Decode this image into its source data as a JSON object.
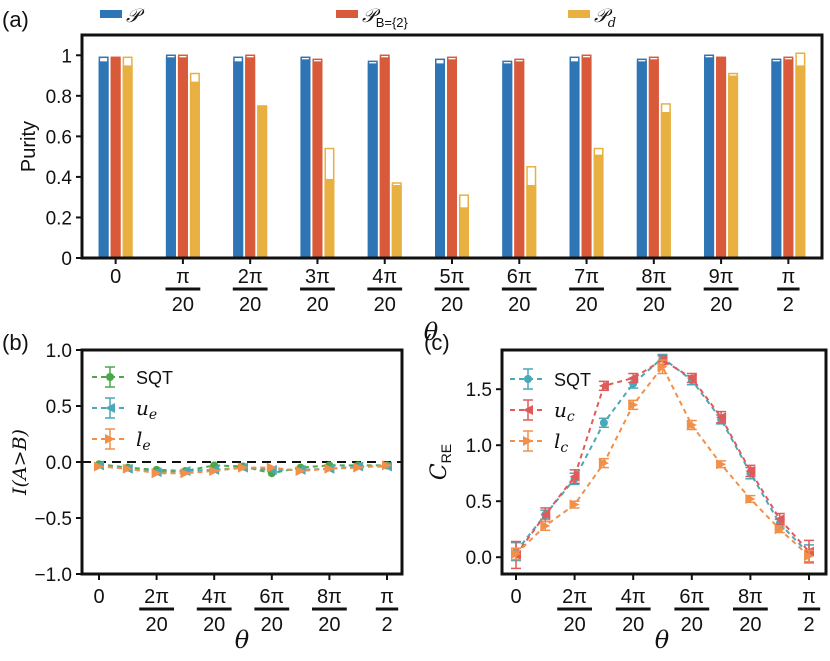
{
  "panels": {
    "a": "(a)",
    "b": "(b)",
    "c": "(c)"
  },
  "theta_symbol": "θ",
  "colors": {
    "blue": "#2e75b6",
    "red": "#d95a3a",
    "gold": "#e8b040",
    "green": "#4aa84a",
    "teal": "#4aa9b8",
    "pink": "#e05a5a",
    "orange": "#f0904a"
  },
  "chart_data": [
    {
      "id": "a",
      "type": "bar",
      "ylabel": "Purity",
      "xlabel": "θ",
      "ylim": [
        0,
        1.1
      ],
      "yticks": [
        "0",
        "0.2",
        "0.4",
        "0.6",
        "0.8",
        "1"
      ],
      "ytick_values": [
        0,
        0.2,
        0.4,
        0.6,
        0.8,
        1.0
      ],
      "categories": [
        {
          "num": "0",
          "den": ""
        },
        {
          "num": "π",
          "den": "20"
        },
        {
          "num": "2π",
          "den": "20"
        },
        {
          "num": "3π",
          "den": "20"
        },
        {
          "num": "4π",
          "den": "20"
        },
        {
          "num": "5π",
          "den": "20"
        },
        {
          "num": "6π",
          "den": "20"
        },
        {
          "num": "7π",
          "den": "20"
        },
        {
          "num": "8π",
          "den": "20"
        },
        {
          "num": "9π",
          "den": "20"
        },
        {
          "num": "π",
          "den": "2"
        }
      ],
      "series": [
        {
          "name": "𝒫",
          "sub": "",
          "color": "#2e75b6",
          "values": [
            0.97,
            0.99,
            0.97,
            0.98,
            0.96,
            0.96,
            0.96,
            0.97,
            0.97,
            0.99,
            0.97
          ],
          "theory": [
            0.99,
            1.0,
            0.99,
            0.99,
            0.97,
            0.98,
            0.97,
            0.99,
            0.98,
            1.0,
            0.98
          ]
        },
        {
          "name": "𝒫",
          "sub": "B={2}",
          "color": "#d95a3a",
          "values": [
            0.99,
            0.99,
            0.99,
            0.97,
            0.99,
            0.98,
            0.97,
            0.99,
            0.98,
            0.99,
            0.98
          ],
          "theory": [
            0.99,
            1.0,
            1.0,
            0.98,
            1.0,
            0.99,
            0.98,
            1.0,
            0.99,
            0.99,
            0.99
          ]
        },
        {
          "name": "𝒫",
          "sub": "d",
          "color": "#e8b040",
          "values": [
            0.95,
            0.87,
            0.75,
            0.39,
            0.36,
            0.25,
            0.36,
            0.51,
            0.72,
            0.9,
            0.95
          ],
          "theory": [
            0.99,
            0.91,
            0.75,
            0.54,
            0.37,
            0.31,
            0.45,
            0.54,
            0.76,
            0.91,
            1.01
          ]
        }
      ]
    },
    {
      "id": "b",
      "type": "line",
      "ylabel": "I(A>B)",
      "xlabel": "θ",
      "ylim": [
        -1.0,
        1.0
      ],
      "yticks": [
        "1.0",
        "0.5",
        "0.0",
        "−0.5",
        "−1.0"
      ],
      "ytick_values": [
        1.0,
        0.5,
        0.0,
        -0.5,
        -1.0
      ],
      "xticks": [
        {
          "num": "0",
          "den": "",
          "pos": 0
        },
        {
          "num": "2π",
          "den": "20",
          "pos": 2
        },
        {
          "num": "4π",
          "den": "20",
          "pos": 4
        },
        {
          "num": "6π",
          "den": "20",
          "pos": 6
        },
        {
          "num": "8π",
          "den": "20",
          "pos": 8
        },
        {
          "num": "π",
          "den": "2",
          "pos": 10
        }
      ],
      "x": [
        0,
        1,
        2,
        3,
        4,
        5,
        6,
        7,
        8,
        9,
        10
      ],
      "series": [
        {
          "name": "SQT",
          "italic": false,
          "marker": "circle",
          "color": "#4aa84a",
          "values": [
            -0.02,
            -0.05,
            -0.07,
            -0.08,
            -0.03,
            -0.04,
            -0.1,
            -0.05,
            -0.03,
            -0.03,
            -0.03
          ]
        },
        {
          "name": "ue",
          "base": "u",
          "sub": "e",
          "italic": true,
          "marker": "tri-left",
          "color": "#4aa9b8",
          "values": [
            -0.03,
            -0.06,
            -0.09,
            -0.08,
            -0.07,
            -0.05,
            -0.07,
            -0.07,
            -0.06,
            -0.04,
            -0.04
          ]
        },
        {
          "name": "le",
          "base": "l",
          "sub": "e",
          "italic": true,
          "marker": "tri-right",
          "color": "#f0904a",
          "values": [
            -0.04,
            -0.06,
            -0.1,
            -0.1,
            -0.08,
            -0.05,
            -0.05,
            -0.08,
            -0.06,
            -0.05,
            -0.03
          ]
        }
      ]
    },
    {
      "id": "c",
      "type": "line",
      "ylabel": "C",
      "ylabel_sub": "RE",
      "xlabel": "θ",
      "ylim": [
        -0.15,
        1.85
      ],
      "yticks": [
        "0.0",
        "0.5",
        "1.0",
        "1.5"
      ],
      "ytick_values": [
        0.0,
        0.5,
        1.0,
        1.5
      ],
      "xticks": [
        {
          "num": "0",
          "den": "",
          "pos": 0
        },
        {
          "num": "2π",
          "den": "20",
          "pos": 2
        },
        {
          "num": "4π",
          "den": "20",
          "pos": 4
        },
        {
          "num": "6π",
          "den": "20",
          "pos": 6
        },
        {
          "num": "8π",
          "den": "20",
          "pos": 8
        },
        {
          "num": "π",
          "den": "2",
          "pos": 10
        }
      ],
      "x": [
        0,
        1,
        2,
        3,
        4,
        5,
        6,
        7,
        8,
        9,
        10
      ],
      "series": [
        {
          "name": "SQT",
          "italic": false,
          "marker": "circle",
          "color": "#4aa9b8",
          "values": [
            0.05,
            0.38,
            0.7,
            1.2,
            1.55,
            1.78,
            1.58,
            1.23,
            0.75,
            0.3,
            0.03
          ],
          "errors": [
            0.08,
            0.04,
            0.05,
            0.04,
            0.04,
            0.03,
            0.04,
            0.04,
            0.05,
            0.04,
            0.08
          ]
        },
        {
          "name": "uc",
          "base": "u",
          "sub": "c",
          "italic": true,
          "marker": "tri-left",
          "color": "#e05a5a",
          "values": [
            0.02,
            0.38,
            0.72,
            1.53,
            1.6,
            1.76,
            1.6,
            1.25,
            0.77,
            0.34,
            0.05
          ],
          "errors": [
            0.12,
            0.06,
            0.06,
            0.04,
            0.04,
            0.04,
            0.04,
            0.05,
            0.05,
            0.05,
            0.1
          ]
        },
        {
          "name": "lc",
          "base": "l",
          "sub": "c",
          "italic": true,
          "marker": "tri-right",
          "color": "#f0904a",
          "values": [
            0.03,
            0.28,
            0.47,
            0.84,
            1.36,
            1.7,
            1.18,
            0.83,
            0.52,
            0.25,
            0.01
          ],
          "errors": [
            0.05,
            0.04,
            0.03,
            0.04,
            0.04,
            0.06,
            0.04,
            0.03,
            0.03,
            0.03,
            0.05
          ]
        }
      ]
    }
  ]
}
